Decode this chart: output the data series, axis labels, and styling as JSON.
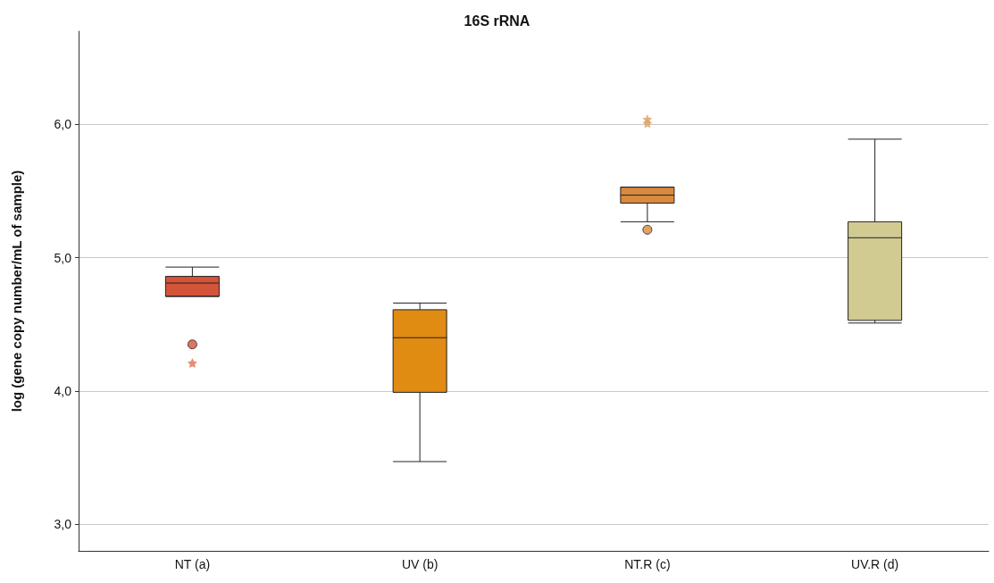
{
  "chart_data": {
    "type": "box",
    "title": "16S rRNA",
    "ylabel": "log (gene copy number/mL of sample)",
    "categories": [
      "NT (a)",
      "UV (b)",
      "NT.R (c)",
      "UV.R (d)"
    ],
    "colors": [
      "#d4543a",
      "#e08b12",
      "#d98a3e",
      "#d1cb92"
    ],
    "boxes": [
      {
        "low": 4.71,
        "q1": 4.71,
        "median": 4.81,
        "q3": 4.86,
        "high": 4.93,
        "outliers": [
          4.35
        ]
      },
      {
        "low": 3.47,
        "q1": 3.99,
        "median": 4.4,
        "q3": 4.61,
        "high": 4.66
      },
      {
        "low": 5.27,
        "q1": 5.41,
        "median": 5.47,
        "q3": 5.53,
        "high": 5.53,
        "outliers": [
          5.21
        ]
      },
      {
        "low": 4.51,
        "q1": 4.53,
        "median": 5.15,
        "q3": 5.27,
        "high": 5.89
      }
    ],
    "series": [
      {
        "type": "scatter",
        "marker": "star",
        "x": [
          "NT (a)",
          "NT.R (c)",
          "NT.R (c)"
        ],
        "values": [
          4.21,
          6.01,
          6.04
        ],
        "colors": [
          "#e07050",
          "#e0a060",
          "#e0a060"
        ]
      }
    ],
    "ylim": [
      2.8,
      6.7
    ],
    "yticks": [
      {
        "value": 3,
        "label": "3,0"
      },
      {
        "value": 4,
        "label": "4,0"
      },
      {
        "value": 5,
        "label": "5,0"
      },
      {
        "value": 6,
        "label": "6,0"
      }
    ],
    "grid": "y"
  }
}
